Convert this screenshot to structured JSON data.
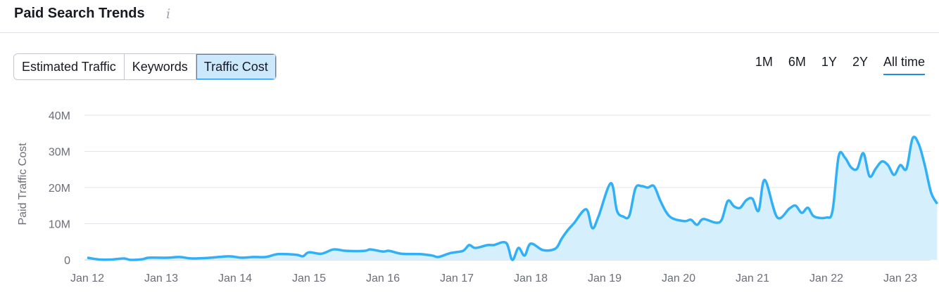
{
  "header": {
    "title": "Paid Search Trends",
    "info_icon": "info-icon"
  },
  "tabs": [
    {
      "label": "Estimated Traffic",
      "active": false
    },
    {
      "label": "Keywords",
      "active": false
    },
    {
      "label": "Traffic Cost",
      "active": true
    }
  ],
  "periods": [
    {
      "label": "1M",
      "active": false
    },
    {
      "label": "6M",
      "active": false
    },
    {
      "label": "1Y",
      "active": false
    },
    {
      "label": "2Y",
      "active": false
    },
    {
      "label": "All time",
      "active": true
    }
  ],
  "colors": {
    "line": "#2fb0f8",
    "fill": "#d3eefc",
    "accent": "#1d8ee6"
  },
  "chart_data": {
    "type": "area",
    "ylabel": "Paid Traffic Cost",
    "xlabel": "",
    "ylim": [
      0,
      40000000
    ],
    "y_ticks": [
      "0",
      "10M",
      "20M",
      "30M",
      "40M"
    ],
    "x_ticks": [
      "Jan 12",
      "Jan 13",
      "Jan 14",
      "Jan 15",
      "Jan 16",
      "Jan 17",
      "Jan 18",
      "Jan 19",
      "Jan 20",
      "Jan 21",
      "Jan 22",
      "Jan 23"
    ],
    "grid": true,
    "series": [
      {
        "x": [
          "2012-01",
          "2012-03",
          "2012-05",
          "2012-07",
          "2012-08",
          "2012-10",
          "2012-11",
          "2013-02",
          "2013-04",
          "2013-06",
          "2013-09",
          "2013-12",
          "2014-02",
          "2014-04",
          "2014-06",
          "2014-08",
          "2014-11",
          "2014-12",
          "2015-01",
          "2015-03",
          "2015-05",
          "2015-07",
          "2015-10",
          "2015-11",
          "2016-01",
          "2016-02",
          "2016-04",
          "2016-07",
          "2016-09",
          "2016-10",
          "2016-12",
          "2017-02",
          "2017-03",
          "2017-04",
          "2017-06",
          "2017-07",
          "2017-09",
          "2017-10",
          "2017-11",
          "2017-12",
          "2018-01",
          "2018-03",
          "2018-05",
          "2018-06",
          "2018-07",
          "2018-08",
          "2018-10",
          "2018-11",
          "2018-12",
          "2019-02",
          "2019-03",
          "2019-04",
          "2019-05",
          "2019-06",
          "2019-07",
          "2019-08",
          "2019-09",
          "2019-10",
          "2019-11",
          "2019-12",
          "2020-02",
          "2020-03",
          "2020-04",
          "2020-05",
          "2020-07",
          "2020-08",
          "2020-09",
          "2020-10",
          "2020-11",
          "2020-12",
          "2021-01",
          "2021-02",
          "2021-03",
          "2021-05",
          "2021-07",
          "2021-08",
          "2021-09",
          "2021-10",
          "2021-11",
          "2022-01",
          "2022-02",
          "2022-03",
          "2022-04",
          "2022-05",
          "2022-06",
          "2022-07",
          "2022-08",
          "2022-09",
          "2022-10",
          "2022-11",
          "2022-12",
          "2023-01",
          "2023-02",
          "2023-03",
          "2023-04",
          "2023-05",
          "2023-06",
          "2023-07"
        ],
        "values": [
          600000,
          100000,
          100000,
          400000,
          0,
          200000,
          600000,
          600000,
          800000,
          400000,
          600000,
          1000000,
          600000,
          800000,
          800000,
          1600000,
          1400000,
          1000000,
          2100000,
          1700000,
          2900000,
          2500000,
          2500000,
          2900000,
          2300000,
          2500000,
          1700000,
          1600000,
          1200000,
          800000,
          1900000,
          2500000,
          4100000,
          3300000,
          4100000,
          4100000,
          4700000,
          0,
          3300000,
          1200000,
          4500000,
          2700000,
          3100000,
          5800000,
          8200000,
          10100000,
          14000000,
          8800000,
          12000000,
          21200000,
          13600000,
          12000000,
          12200000,
          19800000,
          20400000,
          20000000,
          20400000,
          16500000,
          13200000,
          11500000,
          10700000,
          11100000,
          9700000,
          11300000,
          10300000,
          11100000,
          16300000,
          14800000,
          14400000,
          16500000,
          16900000,
          13600000,
          22100000,
          11800000,
          14200000,
          15000000,
          13000000,
          14400000,
          12000000,
          11700000,
          13600000,
          28700000,
          28300000,
          25600000,
          25200000,
          29500000,
          23100000,
          25200000,
          27200000,
          26200000,
          23500000,
          26200000,
          25200000,
          33600000,
          32000000,
          26000000,
          18600000,
          15500000
        ]
      }
    ]
  }
}
